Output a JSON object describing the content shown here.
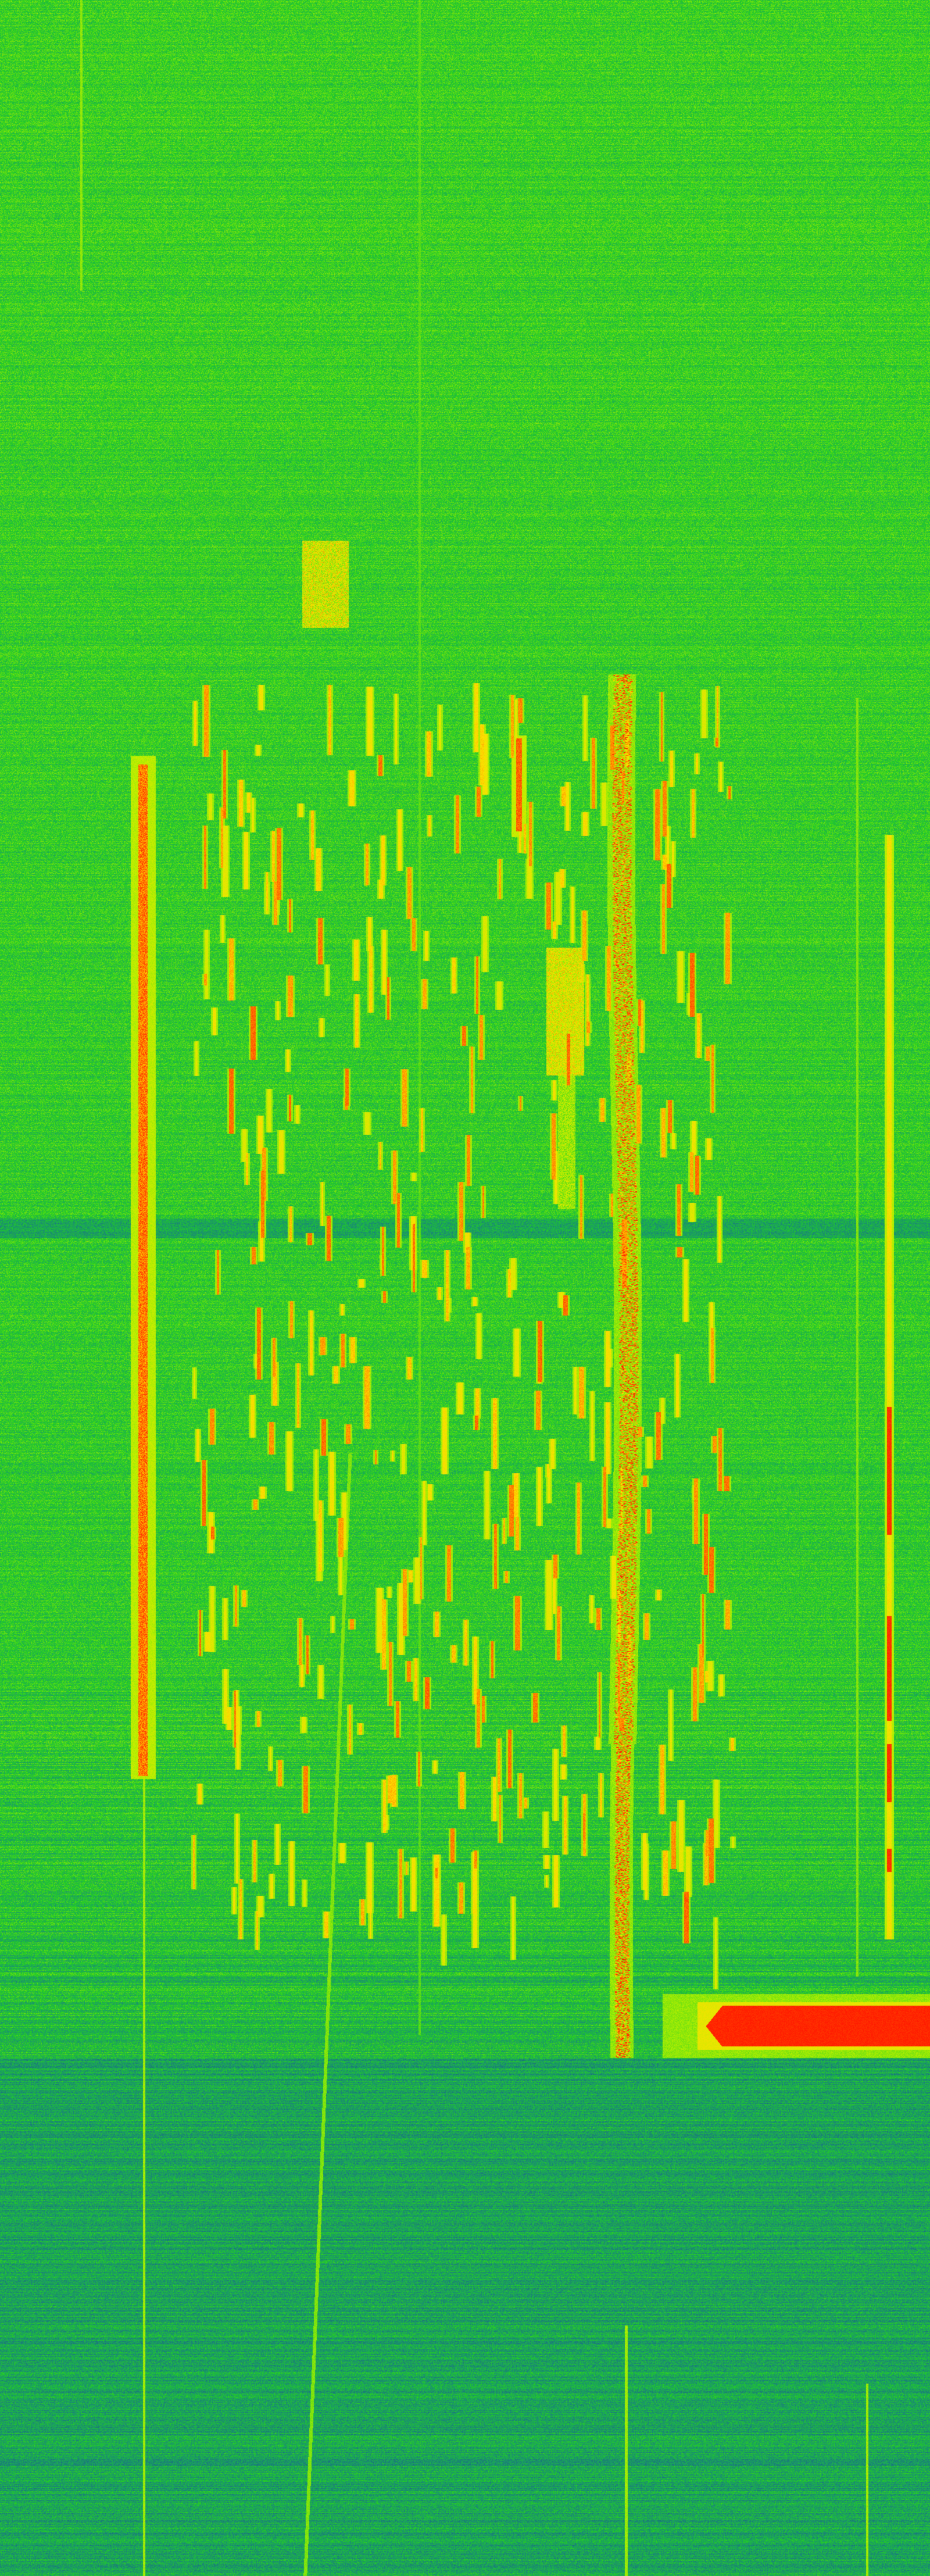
{
  "display": {
    "kind": "waterfall-spectrogram",
    "colormap": [
      {
        "level": 0.0,
        "color": "#1a3a9a"
      },
      {
        "level": 0.3,
        "color": "#1a9a6a"
      },
      {
        "level": 0.45,
        "color": "#22d022"
      },
      {
        "level": 0.65,
        "color": "#b8f000"
      },
      {
        "level": 0.8,
        "color": "#ffe000"
      },
      {
        "level": 1.0,
        "color": "#ff1000"
      }
    ]
  }
}
